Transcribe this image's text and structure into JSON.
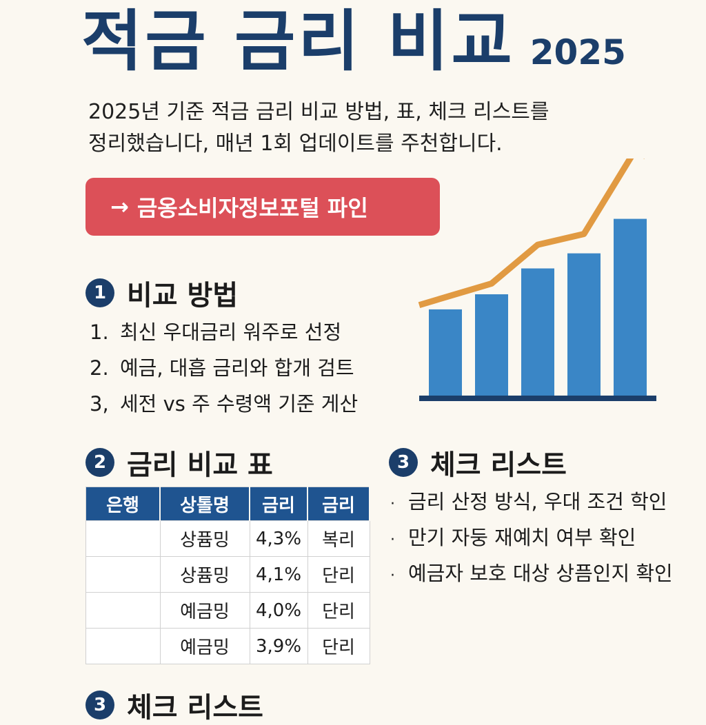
{
  "title": {
    "main": "적금 금리 비교",
    "year": "2025"
  },
  "intro": {
    "line1": "2025년 기준 적금 금리 비교 방법, 표, 체크 리스트를",
    "line2": "정리했습니다, 매년 1회 업데이트를 주천합니다."
  },
  "cta": {
    "arrow": "→",
    "label": "금옹소비자정보포털 파인"
  },
  "section1": {
    "number": "1",
    "title": "비교 방법",
    "steps": [
      {
        "num": "1.",
        "text": "최신 우대금리 워주로 선정"
      },
      {
        "num": "2.",
        "text": "예금, 대흡 금리와 합개 검트"
      },
      {
        "num": "3,",
        "text": "세전 vs 주 수령액 기준 게산"
      }
    ]
  },
  "section2": {
    "number": "2",
    "title": "금리 비교 표",
    "table": {
      "headers": [
        "은행",
        "상톨명",
        "금리",
        "금리"
      ],
      "rows": [
        [
          "",
          "상퓸밍",
          "4,3%",
          "복리"
        ],
        [
          "",
          "상퓸밍",
          "4,1%",
          "단리"
        ],
        [
          "",
          "예금밍",
          "4,0%",
          "단리"
        ],
        [
          "",
          "예금밍",
          "3,9%",
          "단리"
        ]
      ]
    }
  },
  "section3": {
    "number": "3",
    "title": "체크 리스트",
    "bullet": "·",
    "items": [
      "금리 산정 방식, 우대 조건 학인",
      "만기 자둥 재예치 여부 확인",
      "예금자 보호 대상 상픔인지 확인"
    ]
  },
  "section3_repeat": {
    "number": "3",
    "title": "체크 리스트"
  },
  "colors": {
    "navy": "#1b3e6a",
    "table_header": "#1f5490",
    "cta": "#dc5058",
    "bar": "#3a86c6",
    "trend": "#e19a42",
    "background": "#fbf8f1"
  },
  "chart_data": {
    "type": "bar",
    "categories": [
      "",
      "",
      "",
      "",
      ""
    ],
    "values": [
      40,
      47,
      59,
      66,
      82
    ],
    "trend": [
      42,
      52,
      70,
      75,
      110
    ],
    "ylim": [
      0,
      110
    ],
    "title": "",
    "xlabel": "",
    "ylabel": "",
    "grid": false,
    "trend_arrow": true
  }
}
